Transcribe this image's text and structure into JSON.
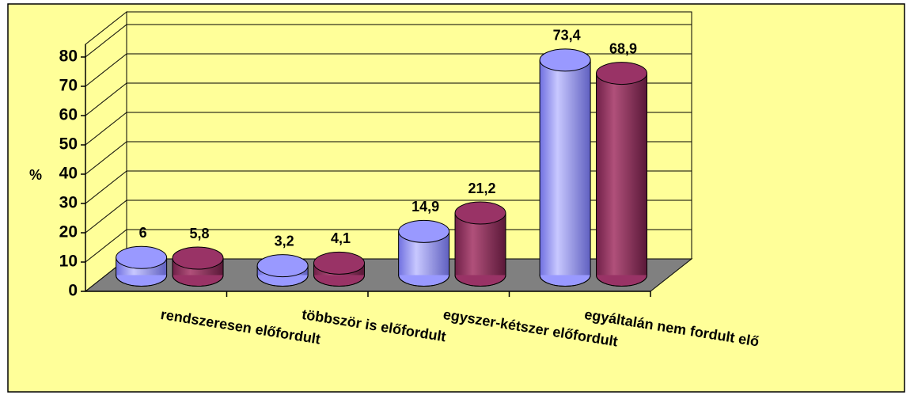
{
  "chart_data": {
    "type": "bar",
    "y_label": "%",
    "categories": [
      "rendszeresen előfordult",
      "többször is előfordult",
      "egyszer-kétszer előfordult",
      "egyáltalán nem fordult elő"
    ],
    "series": [
      {
        "color": "#9999ff",
        "values": [
          6,
          3.2,
          14.9,
          73.4
        ],
        "value_labels": [
          "6",
          "3,2",
          "14,9",
          "73,4"
        ]
      },
      {
        "color": "#993366",
        "values": [
          5.8,
          4.1,
          21.2,
          68.9
        ],
        "value_labels": [
          "5,8",
          "4,1",
          "21,2",
          "68,9"
        ]
      }
    ],
    "ylim": [
      0,
      80
    ],
    "yticks": [
      0,
      10,
      20,
      30,
      40,
      50,
      60,
      70,
      80
    ],
    "grid": true
  }
}
